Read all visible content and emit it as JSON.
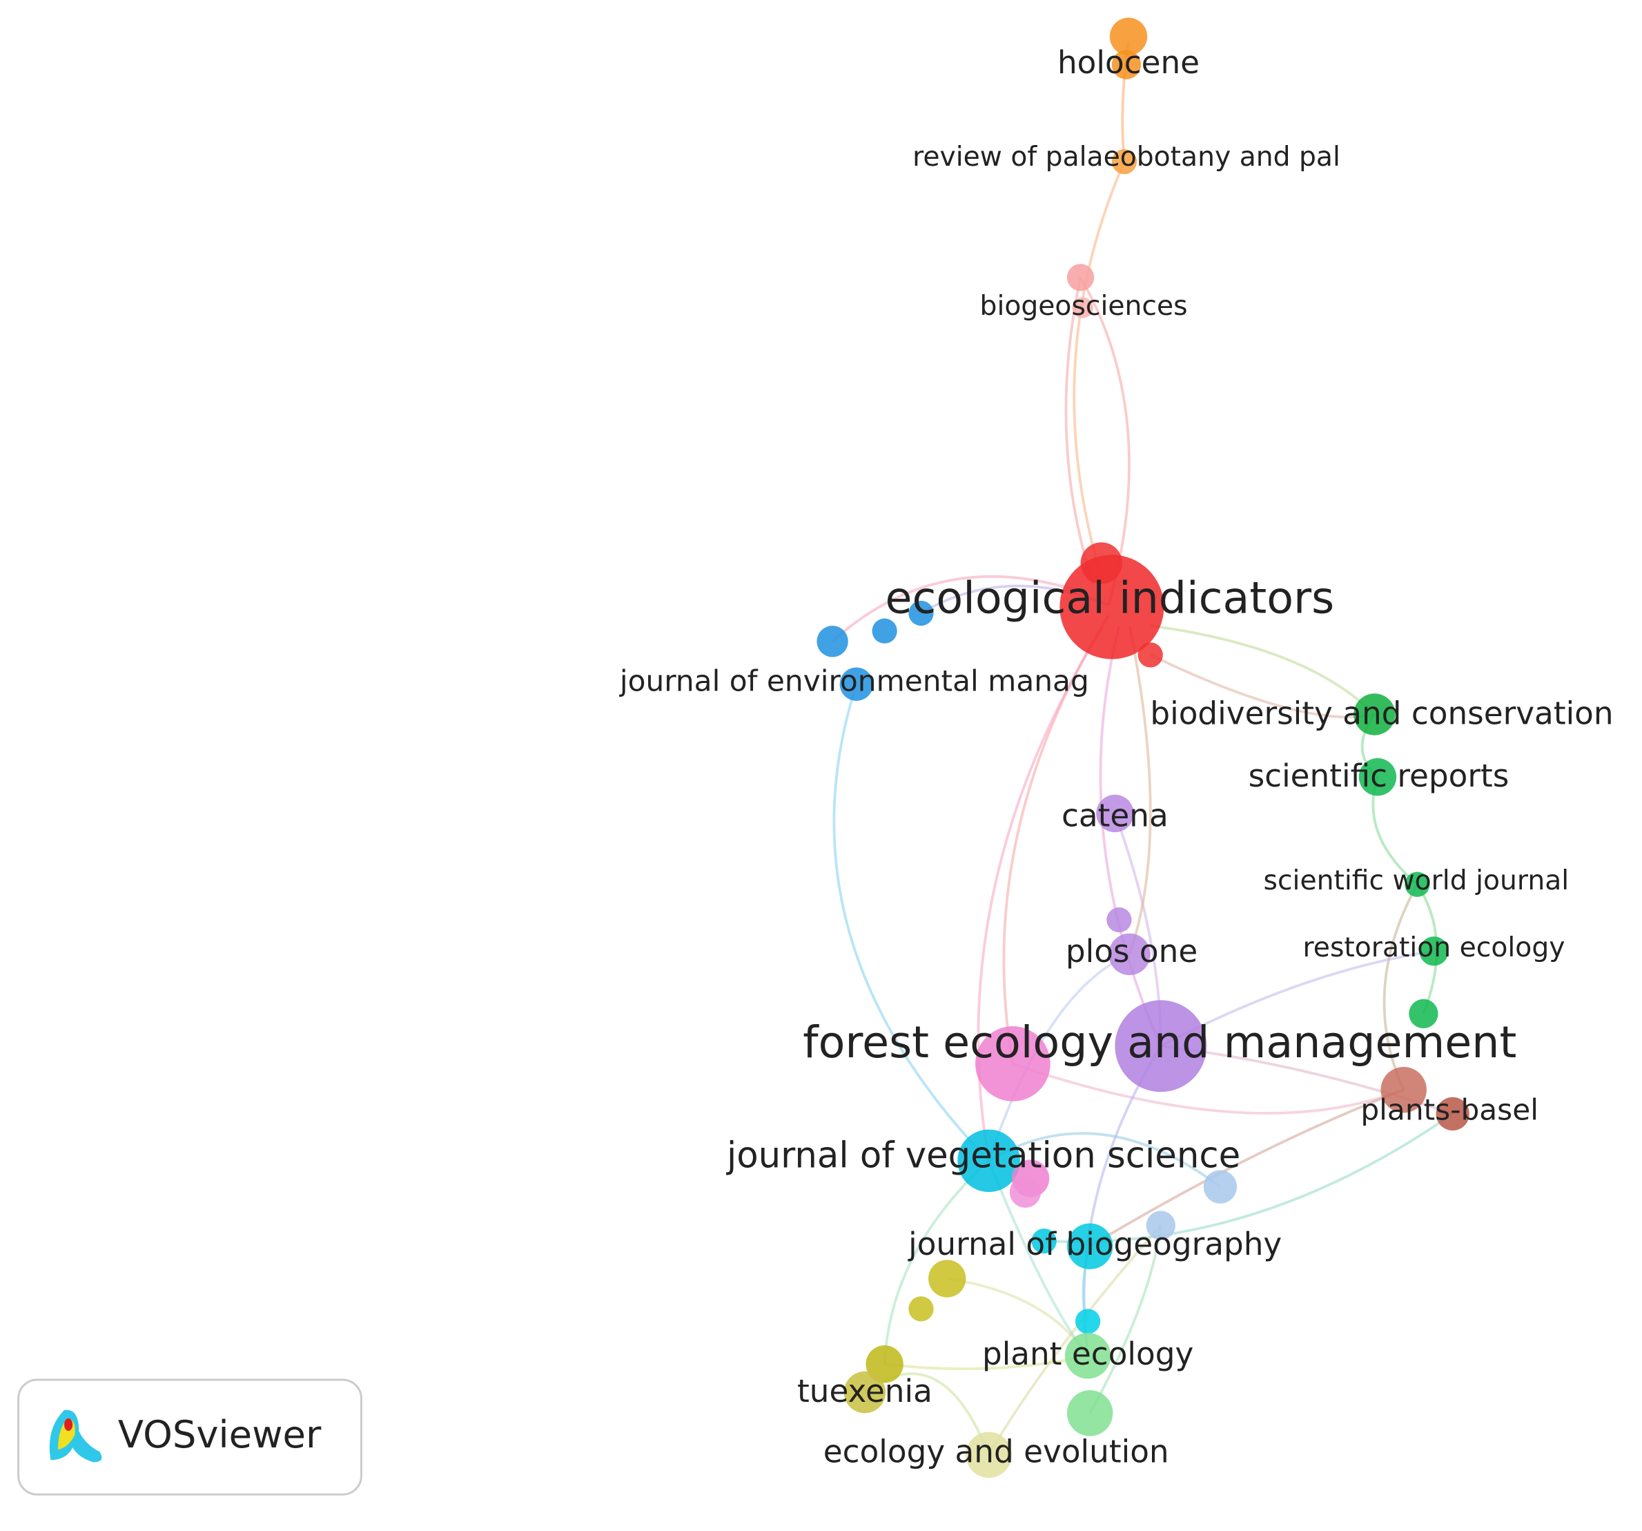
{
  "nodes": [
    {
      "label": "holocene"
    },
    {
      "label": "review of palaeobotany and pal"
    },
    {
      "label": "biogeosciences"
    },
    {
      "label": "ecological indicators"
    },
    {
      "label": "journal of environmental manag"
    },
    {
      "label": "biodiversity and conservation"
    },
    {
      "label": "scientific reports"
    },
    {
      "label": "catena"
    },
    {
      "label": "scientific world journal"
    },
    {
      "label": "restoration ecology"
    },
    {
      "label": "plos one"
    },
    {
      "label": "forest ecology and management"
    },
    {
      "label": "plants-basel"
    },
    {
      "label": "journal of vegetation science"
    },
    {
      "label": "journal of biogeography"
    },
    {
      "label": "plant ecology"
    },
    {
      "label": "tuexenia"
    },
    {
      "label": "ecology and evolution"
    }
  ],
  "logo": {
    "label": "VOSviewer"
  }
}
